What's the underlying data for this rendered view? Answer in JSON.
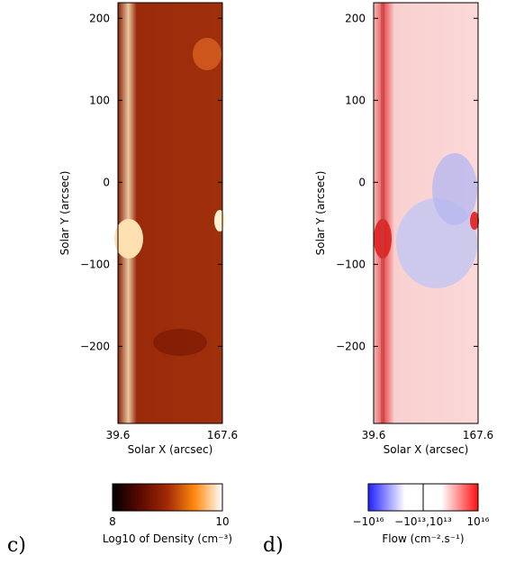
{
  "chart_data": [
    {
      "type": "image",
      "panel_label": "c)",
      "xlabel": "Solar X (arcsec)",
      "ylabel": "Solar Y (arcsec)",
      "xlim": [
        39.6,
        167.6
      ],
      "xticks": [
        39.6,
        167.6
      ],
      "ylim": [
        -294,
        219
      ],
      "yticks": [
        {
          "value": 200,
          "label": "200"
        },
        {
          "value": 100,
          "label": "100"
        },
        {
          "value": 0,
          "label": "0"
        },
        {
          "value": -100,
          "label": "−100"
        },
        {
          "value": -200,
          "label": "−200"
        }
      ],
      "colorbar": {
        "label": "Log10 of Density (cm⁻³)",
        "lim": [
          8,
          10
        ],
        "ticks": [
          8,
          10
        ],
        "colormap": [
          "#000000",
          "#5a0a00",
          "#a32a05",
          "#ff8a10",
          "#ffffff"
        ]
      }
    },
    {
      "type": "image",
      "panel_label": "d)",
      "xlabel": "Solar X (arcsec)",
      "ylabel": "Solar Y (arcsec)",
      "xlim": [
        39.6,
        167.6
      ],
      "xticks": [
        39.6,
        167.6
      ],
      "ylim": [
        -294,
        219
      ],
      "yticks": [
        {
          "value": 200,
          "label": "200"
        },
        {
          "value": 100,
          "label": "100"
        },
        {
          "value": 0,
          "label": "0"
        },
        {
          "value": -100,
          "label": "−100"
        },
        {
          "value": -200,
          "label": "−200"
        }
      ],
      "colorbar": {
        "label": "Flow (cm⁻².s⁻¹)",
        "lim": [
          -1e+16,
          1e+16
        ],
        "ticks": [
          {
            "value": -1e+16,
            "label": "−10¹⁶"
          },
          {
            "value": 0,
            "label": "−10¹³,10¹³"
          },
          {
            "value": 1e+16,
            "label": "10¹⁶"
          }
        ],
        "colormap": [
          "#2020ff",
          "#ffffff",
          "#ffffff",
          "#ff1010"
        ]
      }
    }
  ]
}
